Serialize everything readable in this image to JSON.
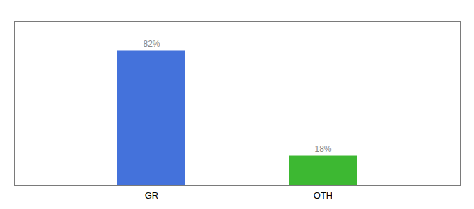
{
  "chart_data": {
    "type": "bar",
    "categories": [
      "GR",
      "OTH"
    ],
    "values": [
      82,
      18
    ],
    "value_labels": [
      "82%",
      "18%"
    ],
    "colors": [
      "#4472db",
      "#3db832"
    ],
    "data_labels": true,
    "ylim": [
      0,
      100
    ],
    "tick_labels": "x"
  }
}
